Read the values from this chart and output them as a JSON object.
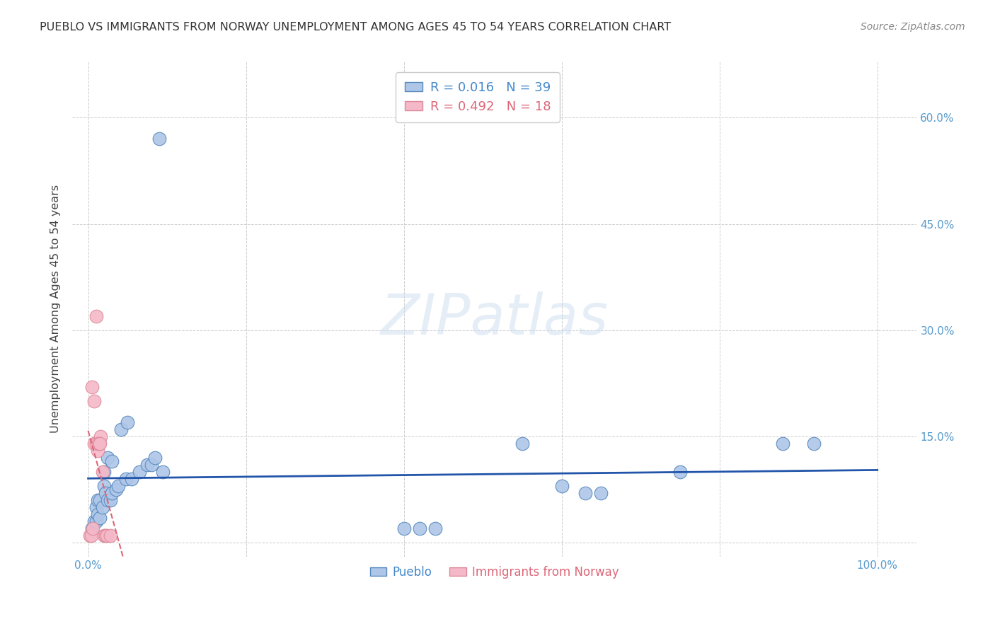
{
  "title": "PUEBLO VS IMMIGRANTS FROM NORWAY UNEMPLOYMENT AMONG AGES 45 TO 54 YEARS CORRELATION CHART",
  "source": "Source: ZipAtlas.com",
  "ylabel": "Unemployment Among Ages 45 to 54 years",
  "xlim": [
    -0.02,
    1.05
  ],
  "ylim": [
    -0.02,
    0.68
  ],
  "xticks": [
    0.0,
    0.2,
    0.4,
    0.6,
    0.8,
    1.0
  ],
  "xticklabels": [
    "0.0%",
    "",
    "",
    "",
    "",
    "100.0%"
  ],
  "yticks": [
    0.0,
    0.15,
    0.3,
    0.45,
    0.6
  ],
  "yticklabels": [
    "",
    "15.0%",
    "30.0%",
    "45.0%",
    "60.0%"
  ],
  "pueblo_color": "#aec6e8",
  "norway_color": "#f4b8c8",
  "pueblo_edge": "#5588bb",
  "norway_edge": "#dd8899",
  "trendline_blue_color": "#2255aa",
  "trendline_pink_color": "#dd6677",
  "background": "#ffffff",
  "grid_color": "#cccccc",
  "watermark_text": "ZIPatlas",
  "legend_r_blue": "0.016",
  "legend_n_blue": "39",
  "legend_r_pink": "0.492",
  "legend_n_pink": "18",
  "pueblo_scatter_x": [
    0.005,
    0.008,
    0.01,
    0.01,
    0.012,
    0.012,
    0.015,
    0.015,
    0.018,
    0.02,
    0.02,
    0.022,
    0.025,
    0.025,
    0.028,
    0.03,
    0.03,
    0.035,
    0.038,
    0.042,
    0.048,
    0.05,
    0.055,
    0.065,
    0.075,
    0.08,
    0.085,
    0.09,
    0.095,
    0.4,
    0.42,
    0.44,
    0.55,
    0.6,
    0.63,
    0.65,
    0.75,
    0.88,
    0.92
  ],
  "pueblo_scatter_y": [
    0.02,
    0.03,
    0.05,
    0.03,
    0.04,
    0.06,
    0.035,
    0.06,
    0.05,
    0.1,
    0.08,
    0.07,
    0.06,
    0.12,
    0.06,
    0.07,
    0.115,
    0.075,
    0.08,
    0.16,
    0.09,
    0.17,
    0.09,
    0.1,
    0.11,
    0.11,
    0.12,
    0.57,
    0.1,
    0.02,
    0.02,
    0.02,
    0.14,
    0.08,
    0.07,
    0.07,
    0.1,
    0.14,
    0.14
  ],
  "norway_scatter_x": [
    0.002,
    0.004,
    0.006,
    0.008,
    0.01,
    0.012,
    0.014,
    0.016,
    0.005,
    0.008,
    0.01,
    0.013,
    0.015,
    0.018,
    0.02,
    0.022,
    0.024,
    0.028
  ],
  "norway_scatter_y": [
    0.01,
    0.01,
    0.02,
    0.14,
    0.14,
    0.13,
    0.14,
    0.15,
    0.22,
    0.2,
    0.32,
    0.14,
    0.14,
    0.1,
    0.01,
    0.01,
    0.01,
    0.01
  ],
  "tick_color": "#5599cc",
  "ylabel_color": "#444444",
  "title_color": "#333333",
  "source_color": "#888888",
  "legend_text_blue": "#4488cc",
  "legend_text_pink": "#dd6677"
}
